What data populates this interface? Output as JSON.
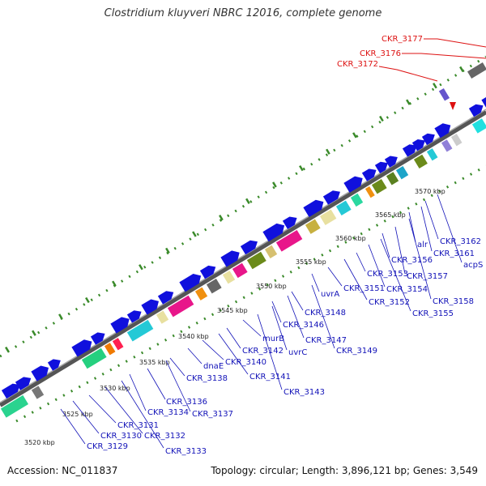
{
  "title": "Clostridium kluyveri NBRC 12016, complete genome",
  "footer": {
    "accession": "Accession: NC_011837",
    "summary": "Topology: circular; Length: 3,896,121 bp; Genes: 3,549"
  },
  "colors": {
    "gene_arrow": "#1010dd",
    "label_blue": "#1212b8",
    "label_red": "#dd1111",
    "backbone": "#777777",
    "dots": "#3a8a2a"
  },
  "scale_labels": [
    "3520 kbp",
    "3525 kbp",
    "3530 kbp",
    "3535 kbp",
    "3540 kbp",
    "3545 kbp",
    "3550 kbp",
    "3555 kbp",
    "3560 kbp",
    "3565 kbp",
    "3570 kbp"
  ],
  "red_labels": [
    "CKR_3177",
    "CKR_3176",
    "CKR_3172"
  ],
  "gene_labels": [
    "CKR_3129",
    "CKR_3130",
    "CKR_3131",
    "CKR_3132",
    "CKR_3133",
    "CKR_3134",
    "CKR_3136",
    "CKR_3137",
    "CKR_3138",
    "dnaE",
    "CKR_3140",
    "CKR_3141",
    "CKR_3142",
    "murB",
    "CKR_3143",
    "uvrC",
    "CKR_3146",
    "CKR_3147",
    "CKR_3148",
    "CKR_3149",
    "uvrA",
    "CKR_3151",
    "CKR_3152",
    "CKR_3153",
    "CKR_3154",
    "CKR_3155",
    "CKR_3156",
    "CKR_3157",
    "CKR_3158",
    "alr",
    "CKR_3161",
    "CKR_3162",
    "acpS"
  ]
}
